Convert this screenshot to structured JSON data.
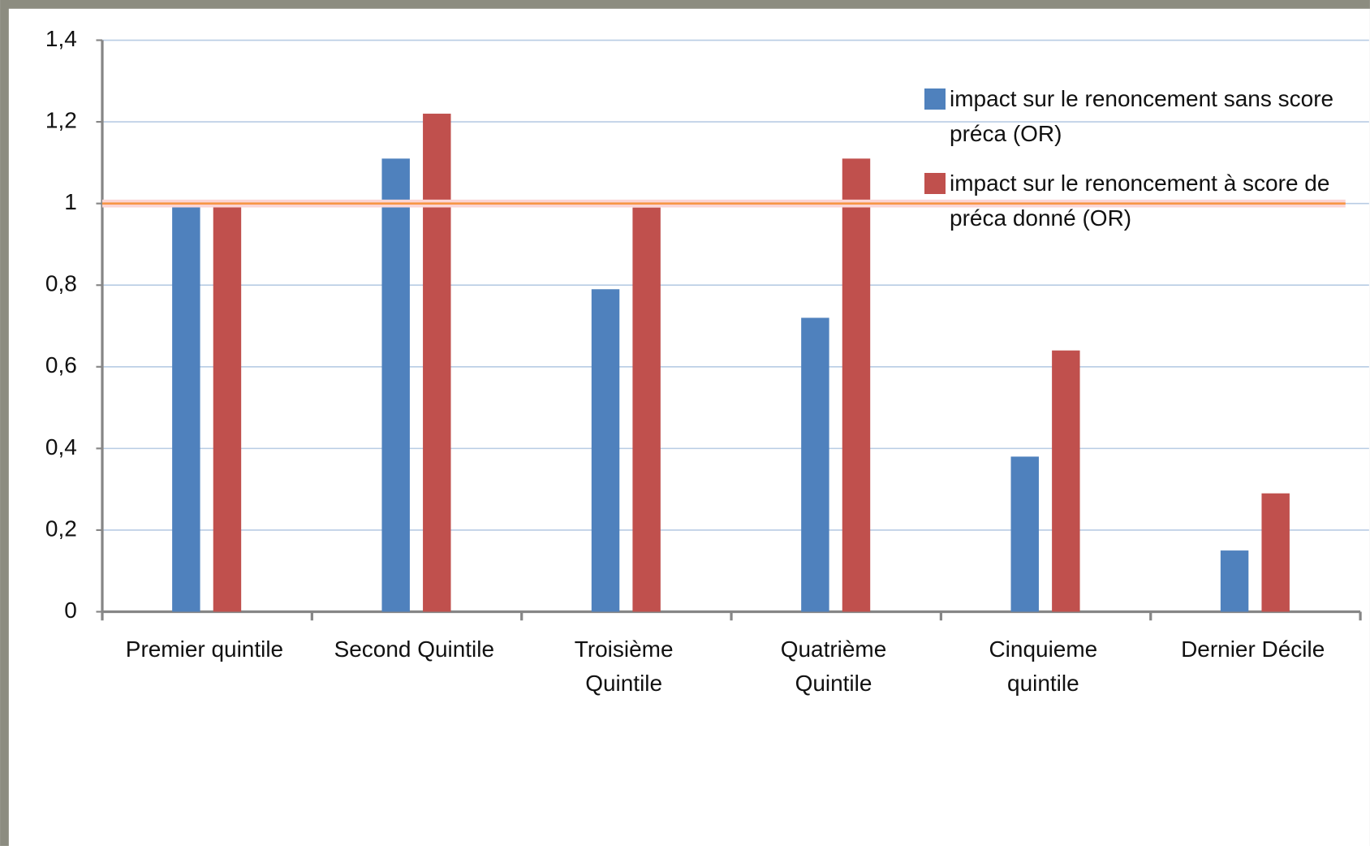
{
  "chart_data": {
    "type": "bar",
    "categories": [
      [
        "Premier quintile"
      ],
      [
        "Second Quintile"
      ],
      [
        "Troisième",
        "Quintile"
      ],
      [
        "Quatrième",
        "Quintile"
      ],
      [
        "Cinquieme",
        "quintile"
      ],
      [
        "Dernier Décile"
      ]
    ],
    "series": [
      {
        "name": "impact sur le renoncement  sans score préca (OR)",
        "color": "#4f81bd",
        "values": [
          1,
          1.11,
          0.79,
          0.72,
          0.38,
          0.15
        ]
      },
      {
        "name": "impact sur le renoncement à score de préca donné (OR)",
        "color": "#c0504d",
        "values": [
          1,
          1.22,
          0.99,
          1.11,
          0.64,
          0.29
        ]
      }
    ],
    "ylim": [
      0,
      1.4
    ],
    "yticks": [
      0,
      {
        "value": 0.2,
        "label": "0,2"
      },
      {
        "value": 0.4,
        "label": "0,4"
      },
      {
        "value": 0.6,
        "label": "0,6"
      },
      {
        "value": 0.8,
        "label": "0,8"
      },
      1,
      {
        "value": 1.2,
        "label": "1,2"
      },
      {
        "value": 1.4,
        "label": "1,4"
      }
    ],
    "grid": true,
    "reference_line": {
      "value": 1,
      "color": "#f79646"
    },
    "legend": "top-right"
  }
}
